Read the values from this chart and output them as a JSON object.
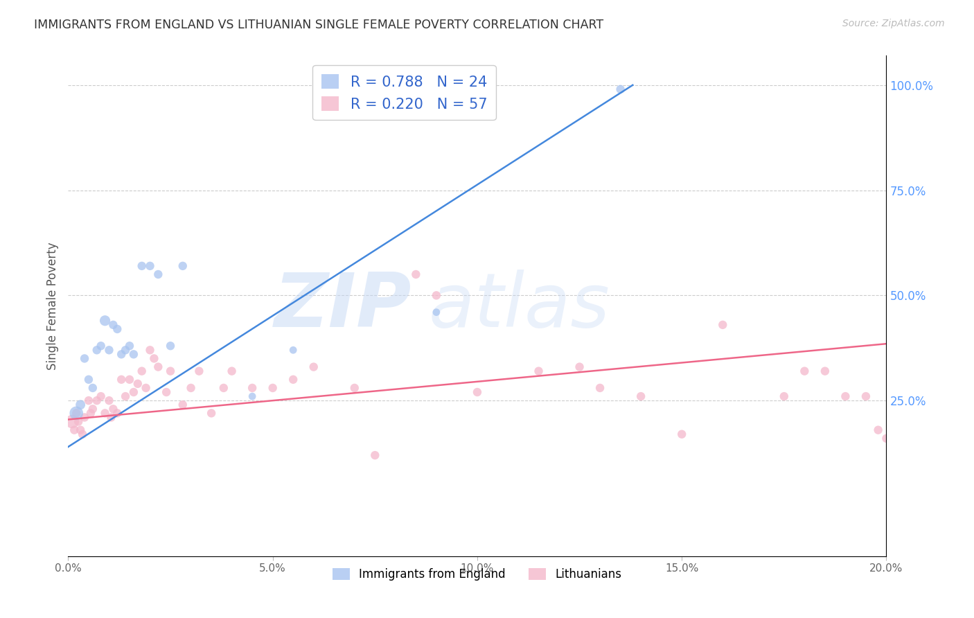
{
  "title": "IMMIGRANTS FROM ENGLAND VS LITHUANIAN SINGLE FEMALE POVERTY CORRELATION CHART",
  "source": "Source: ZipAtlas.com",
  "ylabel": "Single Female Poverty",
  "legend_label1": "Immigrants from England",
  "legend_label2": "Lithuanians",
  "r1": 0.788,
  "n1": 24,
  "r2": 0.22,
  "n2": 57,
  "blue_color": "#a8c4f0",
  "pink_color": "#f4b8cb",
  "blue_line_color": "#4488dd",
  "pink_line_color": "#ee6688",
  "title_color": "#333333",
  "right_axis_color": "#5599ff",
  "watermark_zip": "ZIP",
  "watermark_atlas": "atlas",
  "blue_scatter_x": [
    0.2,
    0.3,
    0.4,
    0.5,
    0.6,
    0.7,
    0.8,
    0.9,
    1.0,
    1.1,
    1.2,
    1.3,
    1.4,
    1.5,
    1.6,
    1.8,
    2.0,
    2.2,
    2.5,
    2.8,
    4.5,
    5.5,
    9.0,
    13.5
  ],
  "blue_scatter_y": [
    22,
    24,
    35,
    30,
    28,
    37,
    38,
    44,
    37,
    43,
    42,
    36,
    37,
    38,
    36,
    57,
    57,
    55,
    38,
    57,
    26,
    37,
    46,
    99
  ],
  "blue_scatter_size": [
    200,
    100,
    80,
    80,
    80,
    80,
    80,
    120,
    80,
    80,
    80,
    80,
    80,
    80,
    80,
    80,
    80,
    80,
    80,
    80,
    60,
    60,
    60,
    80
  ],
  "pink_scatter_x": [
    0.1,
    0.15,
    0.2,
    0.25,
    0.3,
    0.35,
    0.4,
    0.5,
    0.55,
    0.6,
    0.7,
    0.8,
    0.9,
    1.0,
    1.05,
    1.1,
    1.2,
    1.3,
    1.4,
    1.5,
    1.6,
    1.7,
    1.8,
    1.9,
    2.0,
    2.1,
    2.2,
    2.4,
    2.5,
    2.8,
    3.0,
    3.2,
    3.5,
    3.8,
    4.0,
    4.5,
    5.0,
    5.5,
    6.0,
    7.0,
    7.5,
    8.5,
    9.0,
    10.0,
    11.5,
    12.5,
    13.0,
    14.0,
    15.0,
    16.0,
    17.5,
    18.0,
    18.5,
    19.0,
    19.5,
    19.8,
    20.0
  ],
  "pink_scatter_y": [
    20,
    18,
    22,
    20,
    18,
    17,
    21,
    25,
    22,
    23,
    25,
    26,
    22,
    25,
    21,
    23,
    22,
    30,
    26,
    30,
    27,
    29,
    32,
    28,
    37,
    35,
    33,
    27,
    32,
    24,
    28,
    32,
    22,
    28,
    32,
    28,
    28,
    30,
    33,
    28,
    12,
    55,
    50,
    27,
    32,
    33,
    28,
    26,
    17,
    43,
    26,
    32,
    32,
    26,
    26,
    18,
    16
  ],
  "pink_scatter_size": [
    200,
    80,
    80,
    80,
    80,
    80,
    80,
    80,
    80,
    80,
    80,
    80,
    80,
    80,
    80,
    80,
    80,
    80,
    80,
    80,
    80,
    80,
    80,
    80,
    80,
    80,
    80,
    80,
    80,
    80,
    80,
    80,
    80,
    80,
    80,
    80,
    80,
    80,
    80,
    80,
    80,
    80,
    80,
    80,
    80,
    80,
    80,
    80,
    80,
    80,
    80,
    80,
    80,
    80,
    80,
    80,
    80
  ],
  "xmin": 0.0,
  "xmax": 20.0,
  "ymin": -12,
  "ymax": 107,
  "blue_line_x": [
    0.0,
    13.8
  ],
  "blue_line_y": [
    14.0,
    100.0
  ],
  "pink_line_x": [
    0.0,
    20.0
  ],
  "pink_line_y": [
    20.5,
    38.5
  ],
  "xtick_labels": [
    "0.0%",
    "5.0%",
    "10.0%",
    "15.0%",
    "20.0%"
  ],
  "xtick_vals": [
    0,
    5,
    10,
    15,
    20
  ],
  "ytick_right_vals": [
    25,
    50,
    75,
    100
  ],
  "ytick_right_labels": [
    "25.0%",
    "50.0%",
    "75.0%",
    "100.0%"
  ]
}
